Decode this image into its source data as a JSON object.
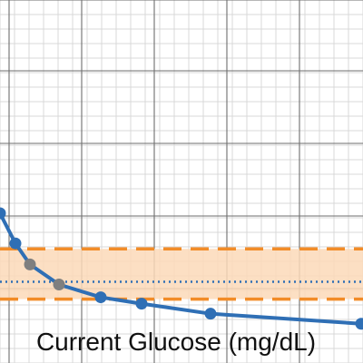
{
  "chart_data": {
    "type": "line",
    "title": "",
    "xlabel": "Current Glucose (mg/dL)",
    "ylabel": "",
    "grid": true,
    "series": [
      {
        "color": "#2f6fb5",
        "points": [
          {
            "x": 0,
            "y": 164,
            "color": "#2f6fb5"
          },
          {
            "x": 17,
            "y": 131,
            "color": "#2f6fb5"
          },
          {
            "x": 33,
            "y": 108,
            "color": "#7f7f7f"
          },
          {
            "x": 65,
            "y": 86,
            "color": "#7f7f7f"
          },
          {
            "x": 111,
            "y": 72,
            "color": "#2f6fb5"
          },
          {
            "x": 156,
            "y": 65,
            "color": "#2f6fb5"
          },
          {
            "x": 232,
            "y": 54,
            "color": "#2f6fb5"
          },
          {
            "x": 398,
            "y": 43,
            "color": "#2f6fb5"
          }
        ]
      }
    ],
    "target_band": {
      "low": 70,
      "high": 125,
      "fill": "#fcd9b8",
      "edge_color": "#f28c28"
    },
    "target_line": {
      "y": 89,
      "color": "#2f6fb5"
    }
  }
}
